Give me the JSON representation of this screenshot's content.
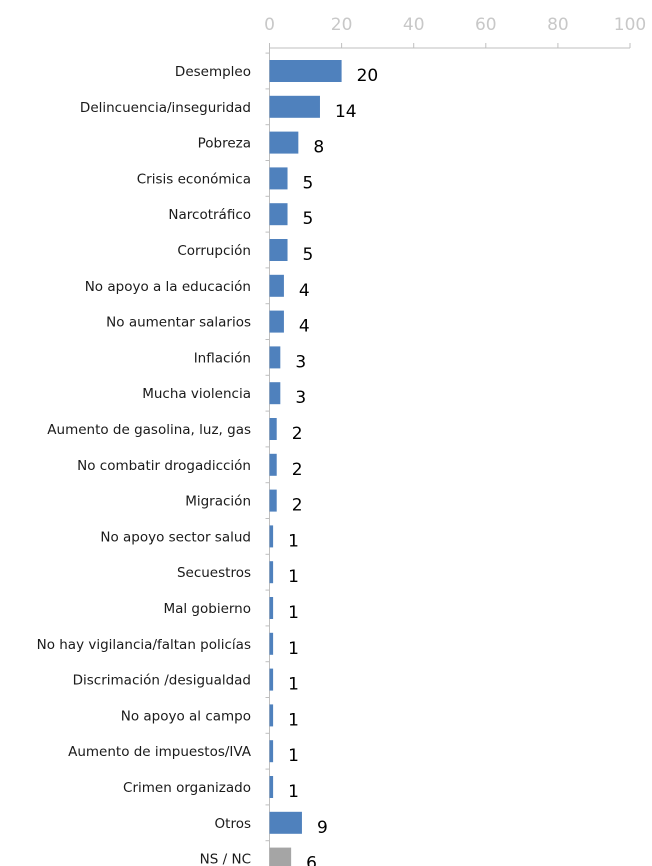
{
  "chart_data": {
    "type": "bar",
    "orientation": "horizontal",
    "title": "",
    "xlabel": "",
    "ylabel": "",
    "xlim": [
      0,
      100
    ],
    "x_ticks": [
      0,
      20,
      40,
      60,
      80,
      100
    ],
    "x_axis_position": "top",
    "grid": false,
    "legend": "none",
    "categories": [
      "Desempleo",
      "Delincuencia/inseguridad",
      "Pobreza",
      "Crisis económica",
      "Narcotráfico",
      "Corrupción",
      "No apoyo a la educación",
      "No aumentar salarios",
      "Inflación",
      "Mucha violencia",
      "Aumento de gasolina, luz, gas",
      "No combatir drogadicción",
      "Migración",
      "No apoyo sector salud",
      "Secuestros",
      "Mal gobierno",
      "No hay vigilancia/faltan policías",
      "Discrimación /desigualdad",
      "No apoyo al campo",
      "Aumento de impuestos/IVA",
      "Crimen organizado",
      "Otros",
      "NS / NC"
    ],
    "values": [
      20,
      14,
      8,
      5,
      5,
      5,
      4,
      4,
      3,
      3,
      2,
      2,
      2,
      1,
      1,
      1,
      1,
      1,
      1,
      1,
      1,
      9,
      6
    ],
    "colors": {
      "default": "#4f81bd",
      "NS / NC": "#a5a5a5"
    }
  }
}
